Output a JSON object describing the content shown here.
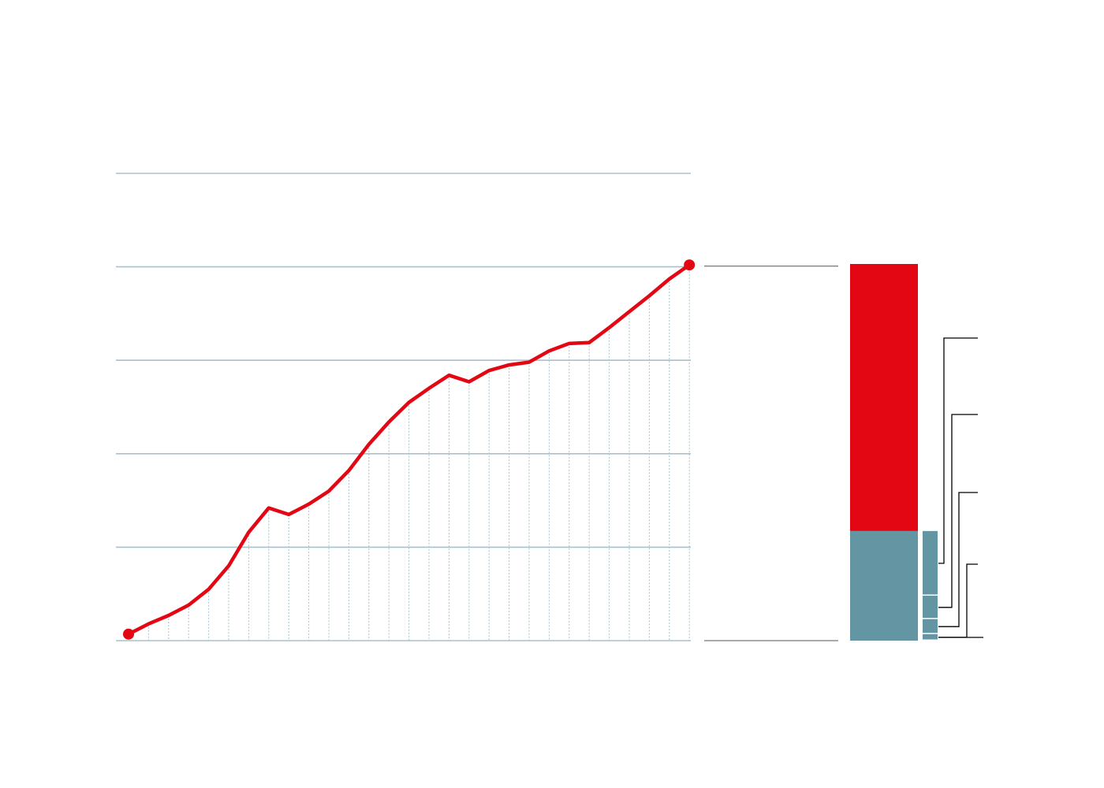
{
  "colors": {
    "line": "#e30613",
    "grid": "#a9c1cc",
    "bar_red": "#e30613",
    "bar_blue": "#6495a3",
    "leader": "#000000",
    "background": "#ffffff"
  },
  "chart_data": [
    {
      "type": "line",
      "title": "",
      "xlabel": "",
      "ylabel": "",
      "ylim": [
        0,
        5
      ],
      "gridlines": [
        0,
        1,
        2,
        3,
        4,
        5
      ],
      "x": [
        1,
        2,
        3,
        4,
        5,
        6,
        7,
        8,
        9,
        10,
        11,
        12,
        13,
        14,
        15,
        16,
        17,
        18,
        19,
        20,
        21,
        22,
        23,
        24,
        25,
        26,
        27,
        28,
        29
      ],
      "series": [
        {
          "values": [
            0.07,
            0.18,
            0.27,
            0.38,
            0.55,
            0.8,
            1.16,
            1.42,
            1.35,
            1.46,
            1.6,
            1.82,
            2.1,
            2.34,
            2.55,
            2.7,
            2.84,
            2.77,
            2.89,
            2.95,
            2.98,
            3.1,
            3.18,
            3.19,
            3.35,
            3.52,
            3.69,
            3.87,
            4.02
          ],
          "markers": "endpoints"
        }
      ],
      "grid": true,
      "legend": "none"
    },
    {
      "type": "bar",
      "title": "",
      "stacked": true,
      "ylim": [
        0,
        4.02
      ],
      "columns": [
        {
          "segments": [
            {
              "value": 1.17,
              "color_key": "bar_blue"
            },
            {
              "value": 2.85,
              "color_key": "bar_red"
            }
          ]
        },
        {
          "segments": [
            {
              "value": 0.07,
              "color_key": "bar_blue"
            },
            {
              "value": 0.16,
              "color_key": "bar_blue"
            },
            {
              "value": 0.25,
              "color_key": "bar_blue"
            },
            {
              "value": 0.69,
              "color_key": "bar_blue"
            }
          ]
        }
      ],
      "legend": "none"
    }
  ]
}
